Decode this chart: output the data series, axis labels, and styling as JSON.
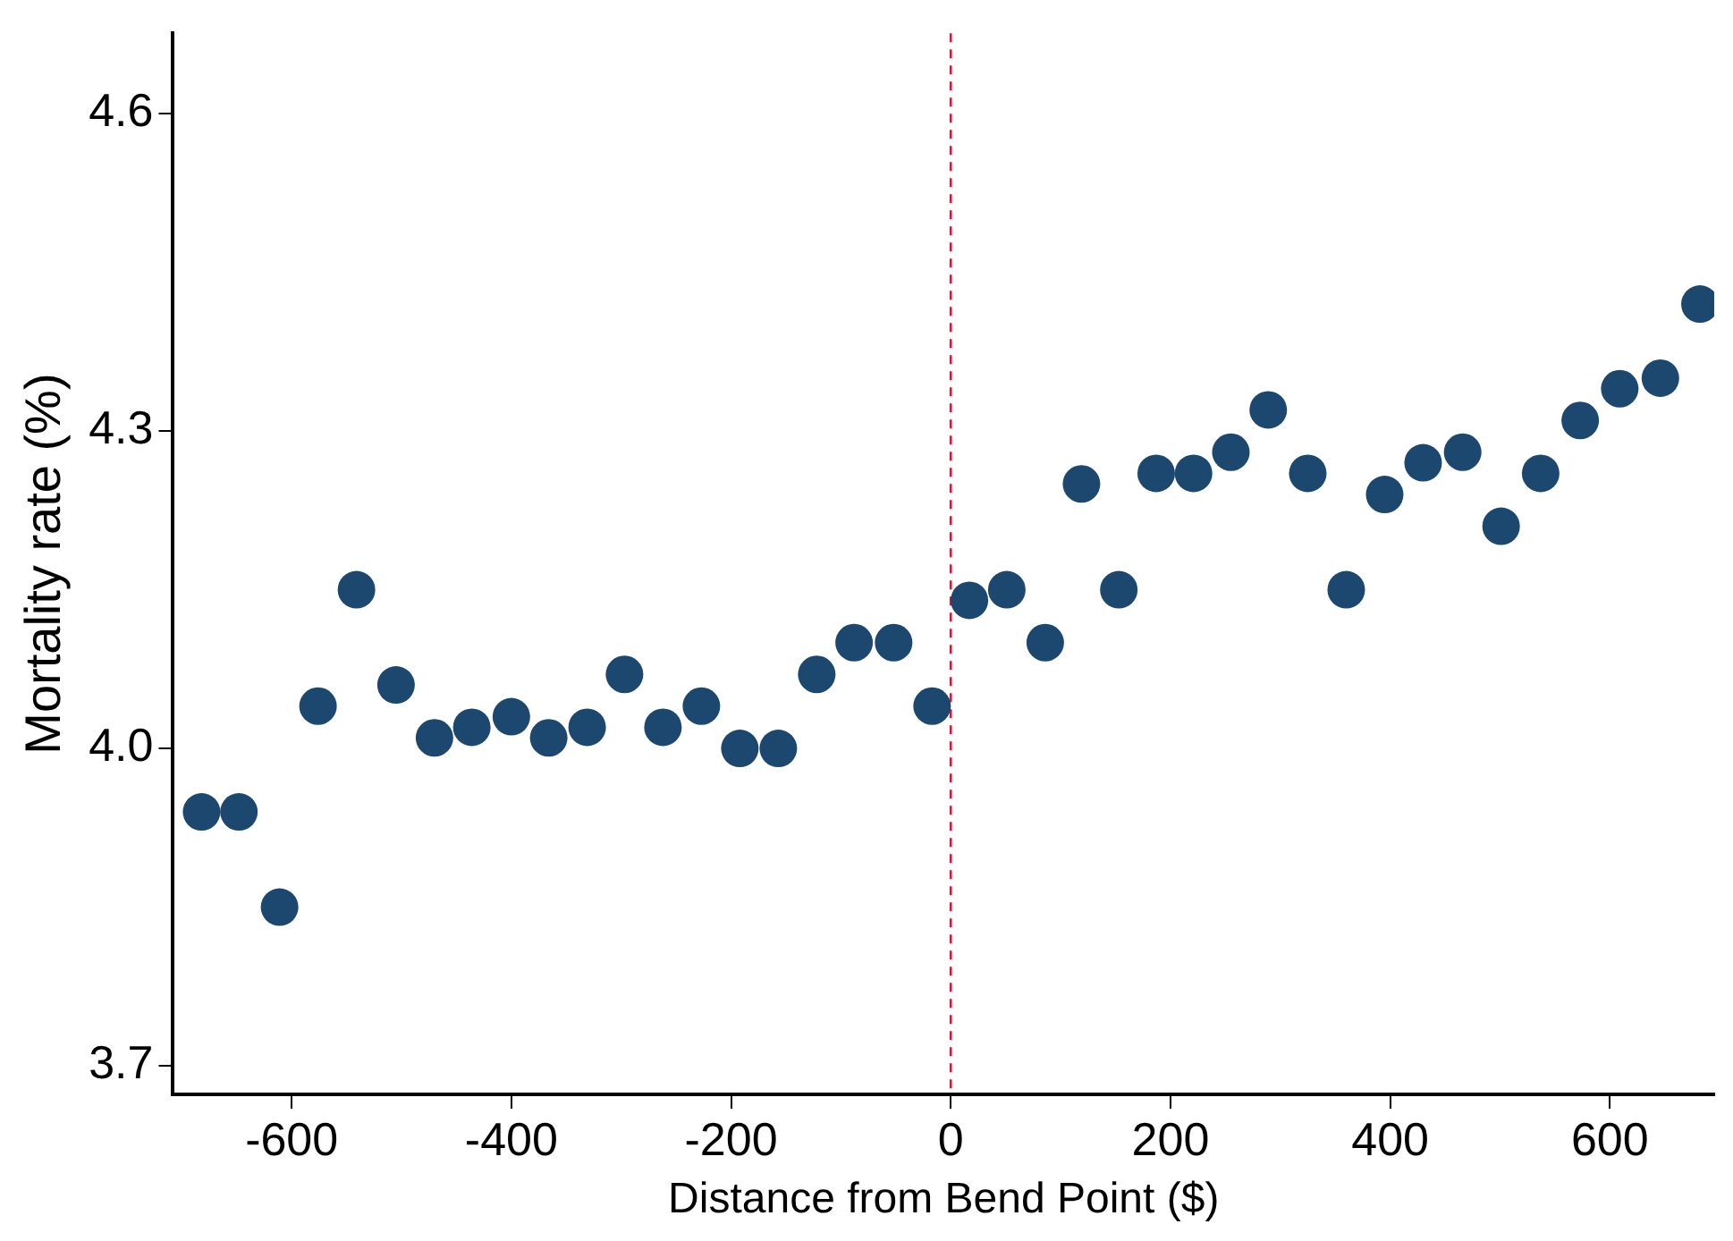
{
  "chart_data": {
    "type": "scatter",
    "xlabel": "Distance from Bend Point ($)",
    "ylabel": "Mortality rate (%)",
    "xlim": [
      -708,
      695
    ],
    "xticks": [
      -600,
      -400,
      -200,
      0,
      200,
      400,
      600
    ],
    "ylim": [
      3.673,
      4.676
    ],
    "yticks": [
      {
        "value": 3.7,
        "label": "3.7"
      },
      {
        "value": 4,
        "label": "4.0"
      },
      {
        "value": 4.3,
        "label": "4.3"
      },
      {
        "value": 4.6,
        "label": "4.6"
      }
    ],
    "grid": false,
    "legend": false,
    "marker": "circle",
    "series": [
      {
        "color": "#1c4870",
        "x": [
          -682,
          -648,
          -611,
          -576,
          -541,
          -505,
          -470,
          -436,
          -400,
          -366,
          -331,
          -297,
          -262,
          -227,
          -192,
          -157,
          -122,
          -88,
          -52,
          -17,
          17,
          51,
          86,
          119,
          153,
          187,
          221,
          255,
          289,
          325,
          360,
          395,
          430,
          466,
          501,
          537,
          573,
          609,
          646,
          682
        ],
        "values": [
          3.94,
          3.94,
          3.85,
          4.04,
          4.15,
          4.06,
          4.01,
          4.02,
          4.03,
          4.01,
          4.02,
          4.07,
          4.02,
          4.04,
          4.0,
          4.0,
          4.07,
          4.1,
          4.1,
          4.04,
          4.14,
          4.15,
          4.1,
          4.25,
          4.15,
          4.26,
          4.26,
          4.28,
          4.32,
          4.26,
          4.15,
          4.24,
          4.27,
          4.28,
          4.21,
          4.26,
          4.31,
          4.34,
          4.35,
          4.42
        ]
      }
    ],
    "ref_lines": [
      {
        "axis": "x",
        "value": 0,
        "color": "#dc143c",
        "line_style": "dashed"
      }
    ]
  }
}
